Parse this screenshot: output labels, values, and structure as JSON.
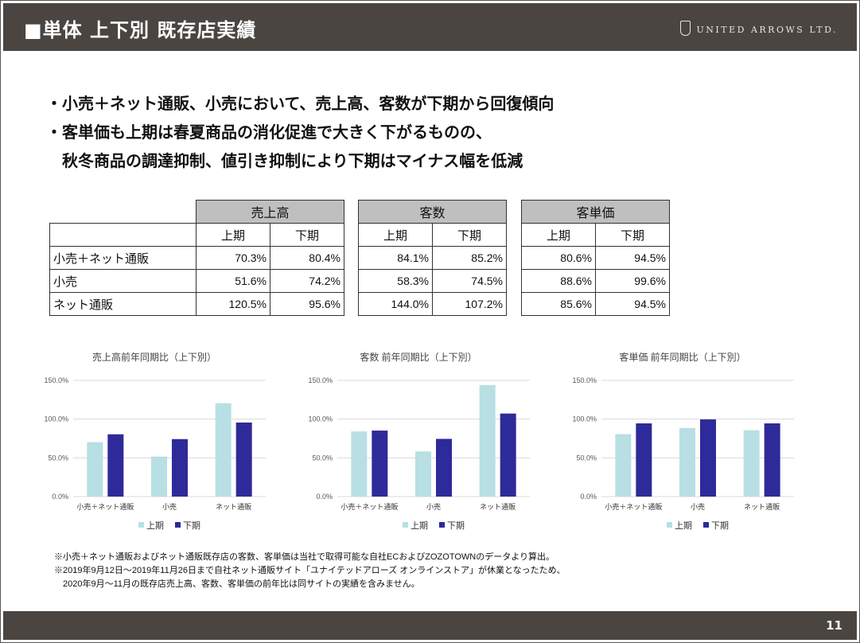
{
  "header": {
    "title": "■単体 上下別 既存店実績",
    "logo_text": "UNITED ARROWS LTD."
  },
  "bullets": [
    "・小売＋ネット通販、小売において、売上高、客数が下期から回復傾向",
    "・客単価も上期は春夏商品の消化促進で大きく下がるものの、",
    "　秋冬商品の調達抑制、値引き抑制により下期はマイナス幅を低減"
  ],
  "tables": [
    {
      "title": "売上高",
      "cols": [
        "上期",
        "下期"
      ],
      "rows": [
        [
          "70.3%",
          "80.4%"
        ],
        [
          "51.6%",
          "74.2%"
        ],
        [
          "120.5%",
          "95.6%"
        ]
      ]
    },
    {
      "title": "客数",
      "cols": [
        "上期",
        "下期"
      ],
      "rows": [
        [
          "84.1%",
          "85.2%"
        ],
        [
          "58.3%",
          "74.5%"
        ],
        [
          "144.0%",
          "107.2%"
        ]
      ]
    },
    {
      "title": "客単価",
      "cols": [
        "上期",
        "下期"
      ],
      "rows": [
        [
          "80.6%",
          "94.5%"
        ],
        [
          "88.6%",
          "99.6%"
        ],
        [
          "85.6%",
          "94.5%"
        ]
      ]
    }
  ],
  "row_labels": [
    "小売＋ネット通販",
    "小売",
    "ネット通販"
  ],
  "colors": {
    "first_half": "#b8dfe3",
    "second_half": "#2e2a9a",
    "header_bg": "#4a4541"
  },
  "chart_data": [
    {
      "type": "bar",
      "title": "売上高前年同期比（上下別）",
      "categories": [
        "小売＋ネット通販",
        "小売",
        "ネット通販"
      ],
      "series": [
        {
          "name": "上期",
          "values": [
            70.3,
            51.6,
            120.5
          ]
        },
        {
          "name": "下期",
          "values": [
            80.4,
            74.2,
            95.6
          ]
        }
      ],
      "yticks": [
        "0.0%",
        "50.0%",
        "100.0%",
        "150.0%"
      ],
      "ylim": [
        0,
        150
      ],
      "legend": "bottom"
    },
    {
      "type": "bar",
      "title": "客数 前年同期比（上下別）",
      "categories": [
        "小売＋ネット通販",
        "小売",
        "ネット通販"
      ],
      "series": [
        {
          "name": "上期",
          "values": [
            84.1,
            58.3,
            144.0
          ]
        },
        {
          "name": "下期",
          "values": [
            85.2,
            74.5,
            107.2
          ]
        }
      ],
      "yticks": [
        "0.0%",
        "50.0%",
        "100.0%",
        "150.0%"
      ],
      "ylim": [
        0,
        150
      ],
      "legend": "bottom"
    },
    {
      "type": "bar",
      "title": "客単価 前年同期比（上下別）",
      "categories": [
        "小売＋ネット通販",
        "小売",
        "ネット通販"
      ],
      "series": [
        {
          "name": "上期",
          "values": [
            80.6,
            88.6,
            85.6
          ]
        },
        {
          "name": "下期",
          "values": [
            94.5,
            99.6,
            94.5
          ]
        }
      ],
      "yticks": [
        "0.0%",
        "50.0%",
        "100.0%",
        "150.0%"
      ],
      "ylim": [
        0,
        150
      ],
      "legend": "bottom"
    }
  ],
  "notes": [
    "※小売＋ネット通販およびネット通販既存店の客数、客単価は当社で取得可能な自社ECおよびZOZOTOWNのデータより算出。",
    "※2019年9月12日～2019年11月26日まで自社ネット通販サイト「ユナイテッドアローズ オンラインストア」が休業となったため、",
    "　2020年9月～11月の既存店売上高、客数、客単価の前年比は同サイトの実績を含みません。"
  ],
  "footer": {
    "page_number": "11"
  }
}
